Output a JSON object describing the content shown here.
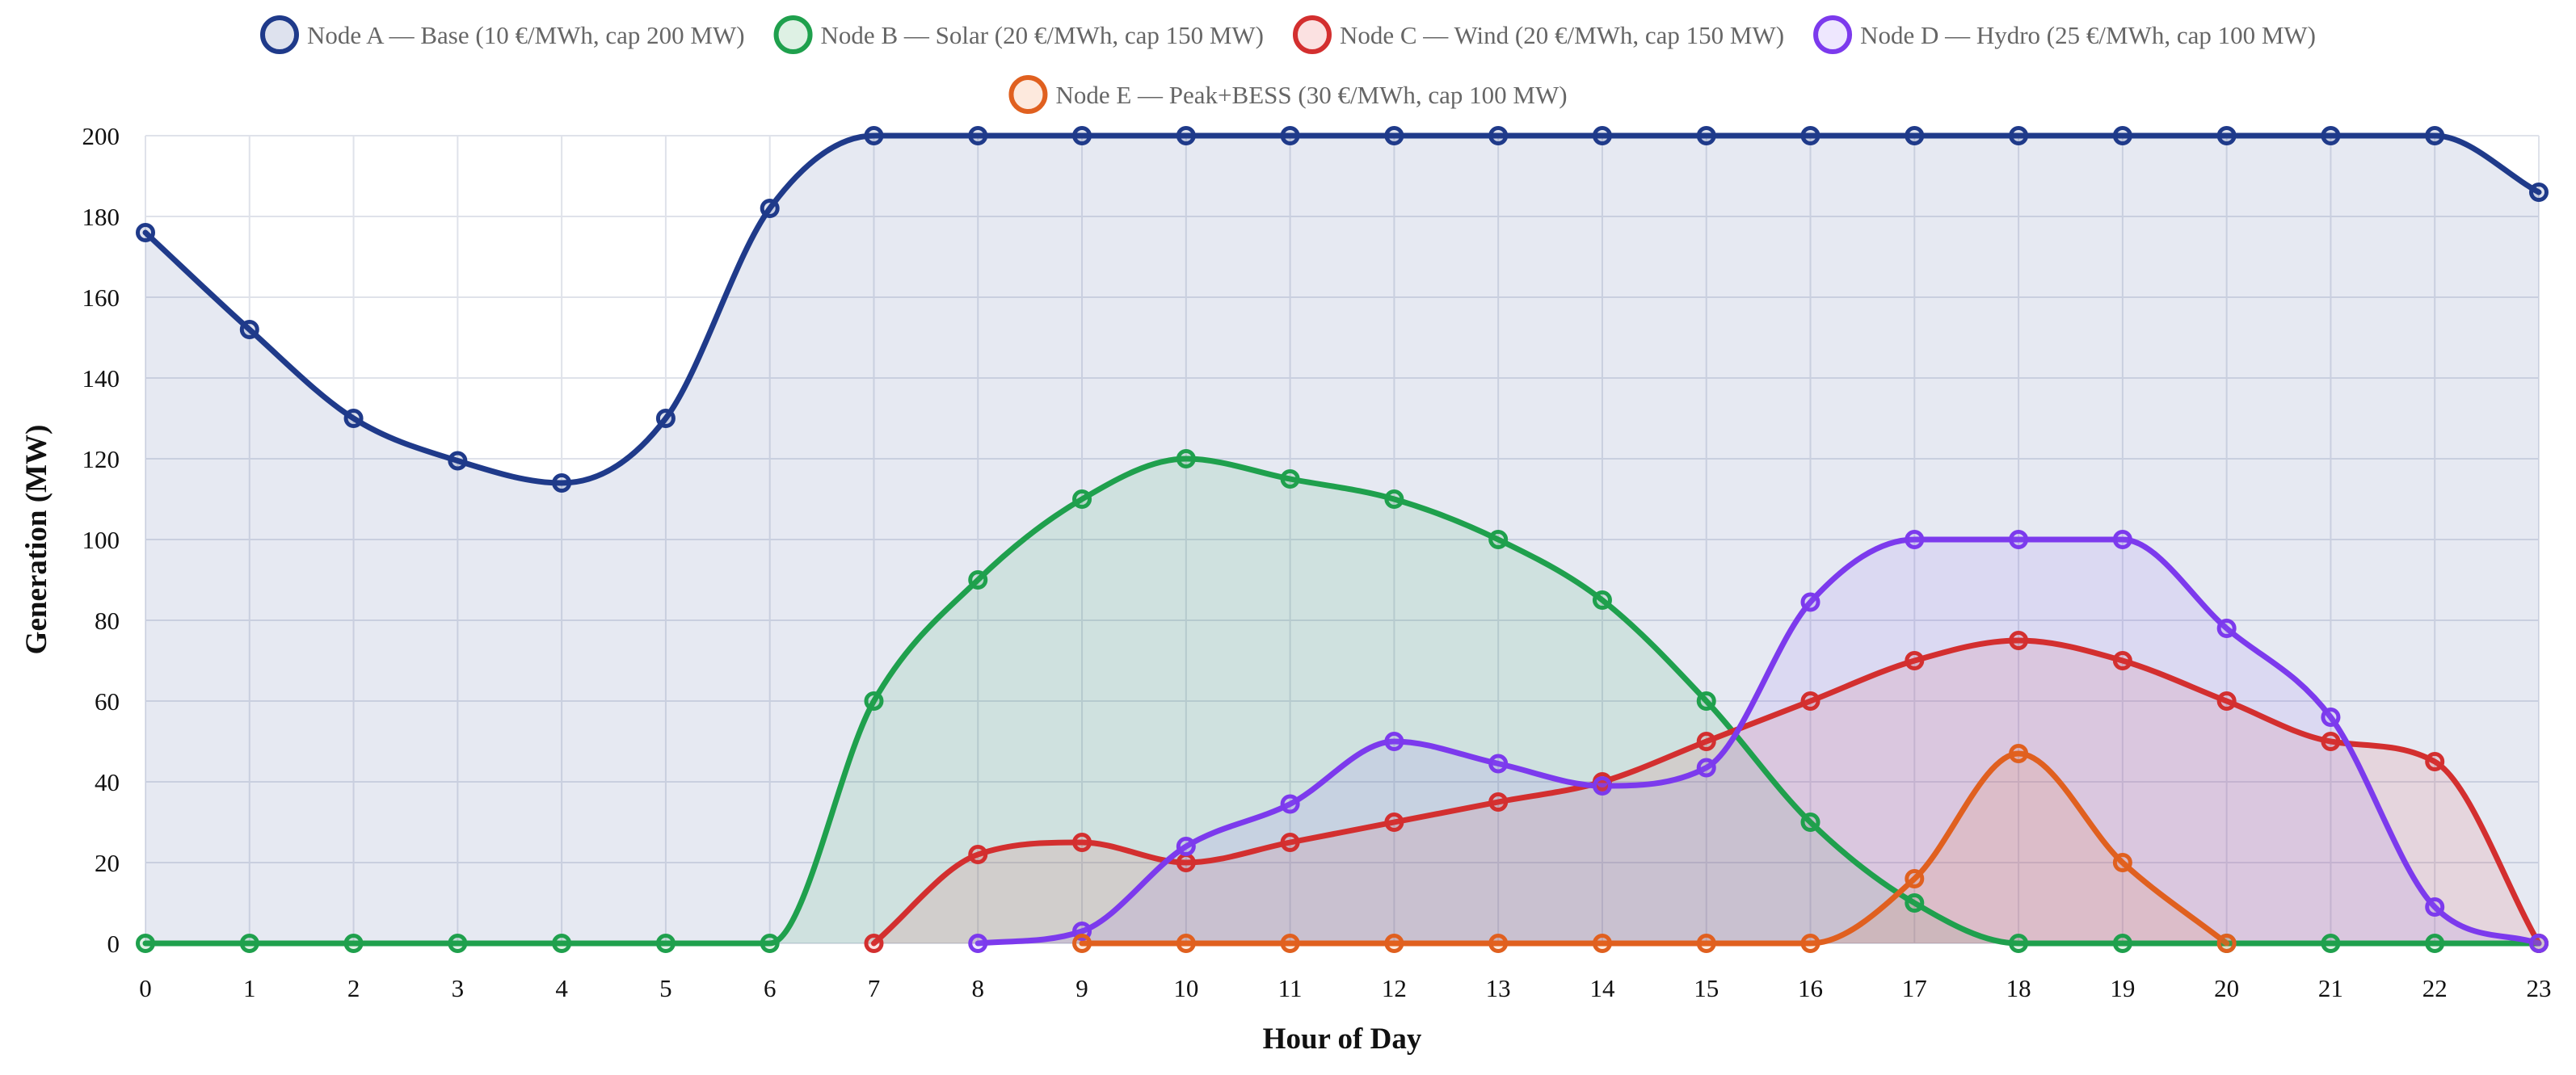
{
  "chart_data": {
    "type": "area",
    "title": "",
    "xlabel": "Hour of Day",
    "ylabel": "Generation (MW)",
    "x": [
      0,
      1,
      2,
      3,
      4,
      5,
      6,
      7,
      8,
      9,
      10,
      11,
      12,
      13,
      14,
      15,
      16,
      17,
      18,
      19,
      20,
      21,
      22,
      23
    ],
    "xlim": [
      0,
      23
    ],
    "ylim": [
      0,
      200
    ],
    "yticks": [
      0,
      20,
      40,
      60,
      80,
      100,
      120,
      140,
      160,
      180,
      200
    ],
    "grid": true,
    "legend_position": "top",
    "series": [
      {
        "name": "Node A — Base (10 €/MWh, cap 200 MW)",
        "color": "#1f3a8a",
        "fill": "#1f3a8a",
        "values": [
          176,
          152,
          130,
          119.5,
          114,
          130,
          182,
          200,
          200,
          200,
          200,
          200,
          200,
          200,
          200,
          200,
          200,
          200,
          200,
          200,
          200,
          200,
          200,
          186
        ]
      },
      {
        "name": "Node B — Solar (20 €/MWh, cap 150 MW)",
        "color": "#1fa04d",
        "fill": "#1fa04d",
        "values": [
          0,
          0,
          0,
          0,
          0,
          0,
          0,
          60,
          90,
          110,
          120,
          115,
          110,
          100,
          85,
          60,
          30,
          10,
          0,
          0,
          0,
          0,
          0,
          0
        ]
      },
      {
        "name": "Node C — Wind (20 €/MWh, cap 150 MW)",
        "color": "#d32f2f",
        "fill": "#e53935",
        "values": [
          null,
          null,
          null,
          null,
          null,
          null,
          null,
          0,
          22,
          25,
          20,
          25,
          30,
          35,
          40,
          50,
          60,
          70,
          75,
          70,
          60,
          50,
          45,
          0
        ]
      },
      {
        "name": "Node D — Hydro (25 €/MWh, cap 100 MW)",
        "color": "#7c3aed",
        "fill": "#8b5cf6",
        "values": [
          null,
          null,
          null,
          null,
          null,
          null,
          null,
          null,
          0,
          3,
          24,
          34.5,
          50,
          44.5,
          39,
          43.5,
          84.5,
          100,
          100,
          100,
          78,
          56,
          9,
          0
        ]
      },
      {
        "name": "Node E — Peak+BESS (30 €/MWh, cap 100 MW)",
        "color": "#e0601f",
        "fill": "#f06a1c",
        "values": [
          null,
          null,
          null,
          null,
          null,
          null,
          null,
          null,
          null,
          0,
          0,
          0,
          0,
          0,
          0,
          0,
          0,
          16,
          47,
          20,
          0,
          null,
          null,
          null
        ]
      }
    ]
  }
}
